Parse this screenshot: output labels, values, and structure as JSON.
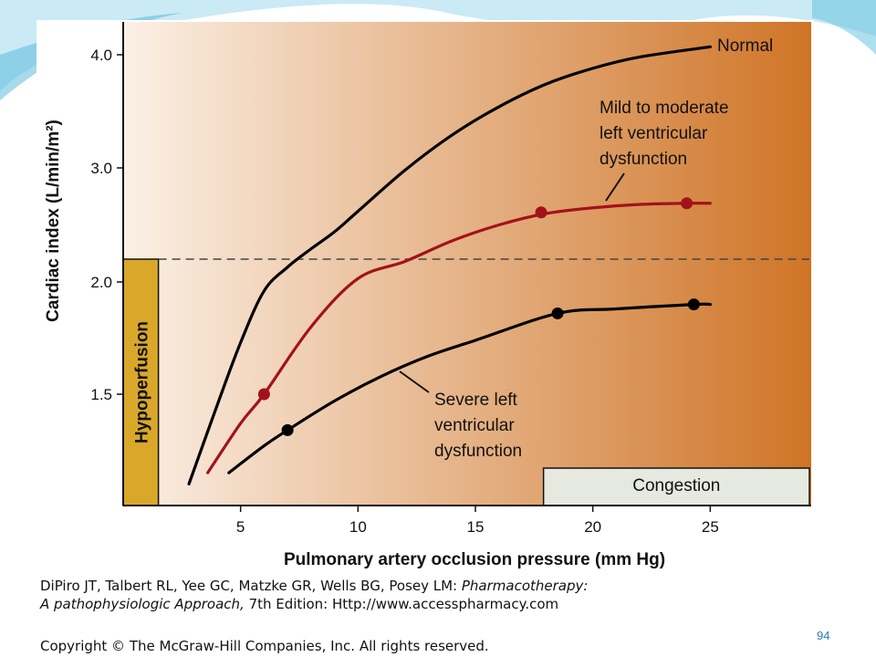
{
  "colors": {
    "normal_curve": "#000000",
    "mild_curve": "#a3121a",
    "severe_curve": "#000000",
    "hypoperfusion_box": "#d9a82a",
    "congestion_box": "#e6e9df",
    "gradient_start": "#fbf0e6",
    "gradient_end": "#cf7426"
  },
  "chart_data": {
    "type": "line",
    "xlabel": "Pulmonary artery occlusion pressure (mm Hg)",
    "ylabel": "Cardiac index (L/min/m²)",
    "x_ticks": [
      "5",
      "10",
      "15",
      "20",
      "25"
    ],
    "y_ticks": [
      "1.5",
      "2.0",
      "3.0",
      "4.0"
    ],
    "xlim": [
      0,
      29.3
    ],
    "y_scale_note": "nonlinear axis (ticks 1.5, 2.0, 3.0, 4.0 equally spaced between 2.0–4.0)",
    "threshold_line": {
      "y": 2.2,
      "style": "dashed"
    },
    "regions": [
      {
        "name": "Hypoperfusion",
        "label": "Hypoperfusion"
      },
      {
        "name": "Congestion",
        "label": "Congestion"
      }
    ],
    "series": [
      {
        "name": "Normal",
        "label": "Normal",
        "points": [
          [
            2.8,
            1.1
          ],
          [
            4,
            1.45
          ],
          [
            5,
            1.73
          ],
          [
            6,
            1.96
          ],
          [
            7,
            2.13
          ],
          [
            8,
            2.29
          ],
          [
            9,
            2.44
          ],
          [
            10,
            2.62
          ],
          [
            12,
            2.98
          ],
          [
            14,
            3.29
          ],
          [
            16,
            3.54
          ],
          [
            18,
            3.74
          ],
          [
            20,
            3.88
          ],
          [
            22,
            3.98
          ],
          [
            25,
            4.07
          ]
        ],
        "markers": []
      },
      {
        "name": "Mild to moderate left ventricular dysfunction",
        "label": "Mild to moderate\nleft ventricular\ndysfunction",
        "points": [
          [
            3.6,
            1.15
          ],
          [
            5,
            1.37
          ],
          [
            6,
            1.5
          ],
          [
            8,
            1.8
          ],
          [
            10,
            2.03
          ],
          [
            12,
            2.18
          ],
          [
            14,
            2.36
          ],
          [
            16,
            2.5
          ],
          [
            18,
            2.6
          ],
          [
            20,
            2.65
          ],
          [
            22,
            2.68
          ],
          [
            24,
            2.69
          ],
          [
            25,
            2.69
          ]
        ],
        "markers": [
          [
            6,
            1.5
          ],
          [
            17.8,
            2.61
          ],
          [
            24,
            2.69
          ]
        ]
      },
      {
        "name": "Severe left ventricular dysfunction",
        "label": "Severe left\nventricular\ndysfunction",
        "points": [
          [
            4.5,
            1.15
          ],
          [
            6,
            1.27
          ],
          [
            7,
            1.34
          ],
          [
            9,
            1.47
          ],
          [
            11,
            1.58
          ],
          [
            13,
            1.67
          ],
          [
            15,
            1.74
          ],
          [
            18.5,
            1.86
          ],
          [
            21,
            1.88
          ],
          [
            24.3,
            1.9
          ],
          [
            25,
            1.9
          ]
        ],
        "markers": [
          [
            7,
            1.34
          ],
          [
            18.5,
            1.86
          ],
          [
            24.3,
            1.9
          ]
        ]
      }
    ]
  },
  "citation": {
    "line1_plain": "DiPiro JT, Talbert RL, Yee GC, Matzke GR, Wells BG, Posey LM: ",
    "line1_italic": "Pharmacotherapy:",
    "line2_italic": "A pathophysiologic Approach,",
    "line2_plain": " 7th Edition: Http://www.accesspharmacy.com"
  },
  "copyright": "Copyright © The McGraw-Hill Companies, Inc. All rights reserved.",
  "slide_number": "94"
}
